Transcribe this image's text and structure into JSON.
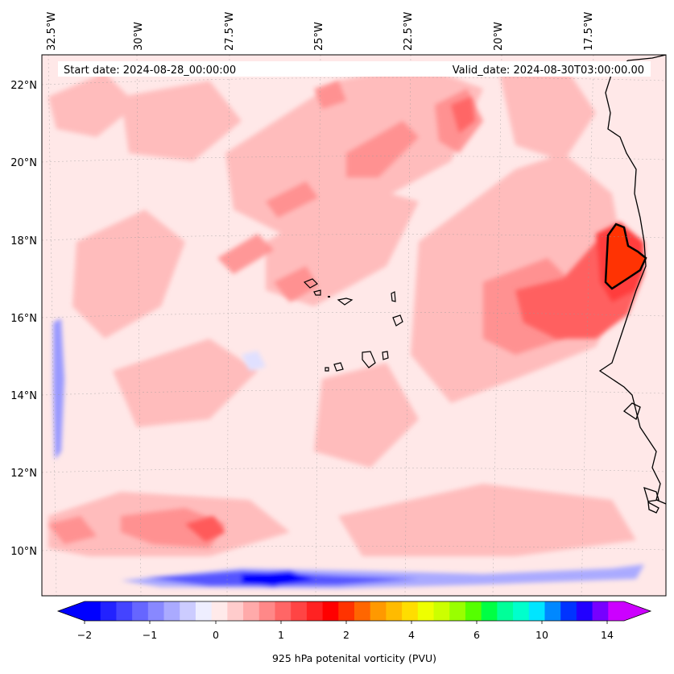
{
  "header": {
    "start_date": "Start date: 2024-08-28_00:00:00",
    "valid_date": "Valid_date: 2024-08-30T03:00:00.00"
  },
  "axes": {
    "lon_labels": [
      "32.5°W",
      "30°W",
      "27.5°W",
      "25°W",
      "22.5°W",
      "20°W",
      "17.5°W"
    ],
    "lat_labels": [
      "22°N",
      "20°N",
      "18°N",
      "16°N",
      "14°N",
      "12°N",
      "10°N"
    ]
  },
  "colorbar": {
    "label": "925 hPa potenital vorticity (PVU)",
    "tick_labels": [
      "−2",
      "−1",
      "0",
      "1",
      "2",
      "4",
      "6",
      "10",
      "14"
    ],
    "colors": [
      "#0000ff",
      "#2222ff",
      "#4444ff",
      "#6666ff",
      "#8888ff",
      "#aaaaff",
      "#ccccff",
      "#eeeeff",
      "#ffeaea",
      "#ffcccc",
      "#ffaaaa",
      "#ff8888",
      "#ff6666",
      "#ff4444",
      "#ff2222",
      "#ff0000",
      "#ff3300",
      "#ff6600",
      "#ff9900",
      "#ffbb00",
      "#ffdd00",
      "#eeff00",
      "#ccff00",
      "#99ff00",
      "#55ff00",
      "#00ff44",
      "#00ff99",
      "#00ffcc",
      "#00e5ff",
      "#0088ff",
      "#0033ff",
      "#2200ff",
      "#7700ff",
      "#cc00ff"
    ],
    "extend_low_color": "#0000ff",
    "extend_high_color": "#cc00ff"
  },
  "colors": {
    "background_field": "#ffe8e8",
    "light_red": "#ffb3b3",
    "mid_red": "#ff8080",
    "strong_red": "#ff4d4d",
    "peak": "#ff3300",
    "blue_band": "#2222ff",
    "coast": "#000000"
  }
}
